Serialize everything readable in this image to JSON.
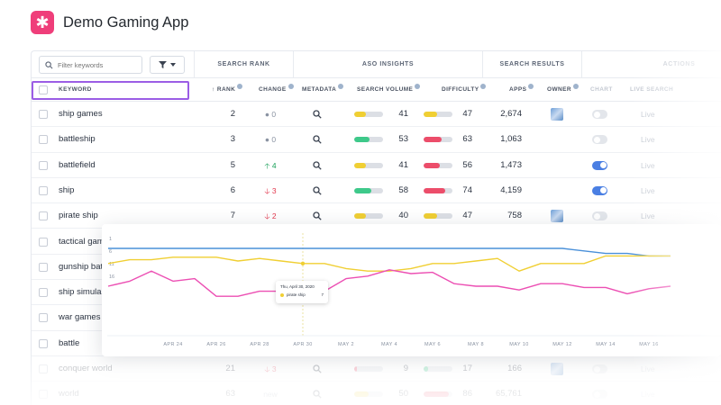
{
  "app": {
    "title": "Demo Gaming App",
    "logo_icon": "asterisk-icon",
    "brand_color": "#ef3e7a"
  },
  "toolbar": {
    "search_placeholder": "Filter keywords",
    "filter_icon": "filter-icon"
  },
  "groups": {
    "search_rank": "SEARCH RANK",
    "aso_insights": "ASO INSIGHTS",
    "search_results": "SEARCH RESULTS",
    "actions": "ACTIONS"
  },
  "columns": {
    "keyword": "KEYWORD",
    "rank": "RANK",
    "change": "CHANGE",
    "metadata": "METADATA",
    "search_volume": "SEARCH VOLUME",
    "difficulty": "DIFFICULTY",
    "apps": "APPS",
    "owner": "OWNER",
    "chart": "CHART",
    "live_search": "LIVE SEARCH"
  },
  "live_label": "Live",
  "rows": [
    {
      "keyword": "ship games",
      "rank": "2",
      "change": "0",
      "change_dir": "same",
      "volume": 41,
      "volume_color": "#f0cf33",
      "difficulty": 47,
      "difficulty_color": "#f0cf33",
      "apps": "2,674",
      "owner": true,
      "chart": false
    },
    {
      "keyword": "battleship",
      "rank": "3",
      "change": "0",
      "change_dir": "same",
      "volume": 53,
      "volume_color": "#3ec98a",
      "difficulty": 63,
      "difficulty_color": "#ec4d6a",
      "apps": "1,063",
      "owner": false,
      "chart": false
    },
    {
      "keyword": "battlefield",
      "rank": "5",
      "change": "4",
      "change_dir": "up",
      "volume": 41,
      "volume_color": "#f0cf33",
      "difficulty": 56,
      "difficulty_color": "#ec4d6a",
      "apps": "1,473",
      "owner": false,
      "chart": true
    },
    {
      "keyword": "ship",
      "rank": "6",
      "change": "3",
      "change_dir": "down",
      "volume": 58,
      "volume_color": "#3ec98a",
      "difficulty": 74,
      "difficulty_color": "#ec4d6a",
      "apps": "4,159",
      "owner": false,
      "chart": true
    },
    {
      "keyword": "pirate ship",
      "rank": "7",
      "change": "2",
      "change_dir": "down",
      "volume": 40,
      "volume_color": "#f0cf33",
      "difficulty": 47,
      "difficulty_color": "#f0cf33",
      "apps": "758",
      "owner": true,
      "chart": false
    },
    {
      "keyword": "tactical gam"
    },
    {
      "keyword": "gunship bat"
    },
    {
      "keyword": "ship simula"
    },
    {
      "keyword": "war games"
    },
    {
      "keyword": "battle"
    },
    {
      "keyword": "conquer world",
      "rank": "21",
      "change": "3",
      "change_dir": "down",
      "volume": 9,
      "volume_color": "#ec4d6a",
      "difficulty": 17,
      "difficulty_color": "#3ec98a",
      "apps": "166",
      "owner": true,
      "chart": false,
      "faded": true
    },
    {
      "keyword": "world",
      "rank": "63",
      "change": "new",
      "change_dir": "new",
      "volume": 50,
      "volume_color": "#f0cf33",
      "difficulty": 86,
      "difficulty_color": "#ec4d6a",
      "apps": "65,761",
      "owner": false,
      "chart": false,
      "faded": true
    }
  ],
  "chart_data": {
    "type": "line",
    "x_tick_labels": [
      "APR 24",
      "APR 26",
      "APR 28",
      "APR 30",
      "MAY 2",
      "MAY 4",
      "MAY 6",
      "MAY 8",
      "MAY 10",
      "MAY 12",
      "MAY 14",
      "MAY 16"
    ],
    "y_tick_labels": [
      "1",
      "6",
      "11",
      "16"
    ],
    "y_reversed": true,
    "x": [
      "Apr 21",
      "Apr 22",
      "Apr 23",
      "Apr 24",
      "Apr 25",
      "Apr 26",
      "Apr 27",
      "Apr 28",
      "Apr 29",
      "Apr 30",
      "May 1",
      "May 2",
      "May 3",
      "May 4",
      "May 5",
      "May 6",
      "May 7",
      "May 8",
      "May 9",
      "May 10",
      "May 11",
      "May 12",
      "May 13",
      "May 14",
      "May 15",
      "May 16",
      "May 17"
    ],
    "series": [
      {
        "color": "#4a90d9",
        "values": [
          1,
          1,
          1,
          1,
          1,
          1,
          1,
          1,
          1,
          1,
          1,
          1,
          1,
          1,
          1,
          1,
          1,
          1,
          1,
          1,
          1,
          1,
          2,
          3,
          3,
          4,
          4
        ]
      },
      {
        "color": "#f0cf33",
        "values": [
          7,
          5.5,
          5.5,
          4.5,
          4.5,
          4.5,
          6,
          5,
          6,
          7,
          7,
          9,
          10,
          10,
          9,
          7,
          7,
          6,
          5,
          10,
          7,
          7,
          7,
          4,
          4,
          4,
          4
        ]
      },
      {
        "color": "#ec4fb3",
        "values": [
          16,
          14,
          10,
          14,
          13,
          20,
          20,
          18,
          18,
          20,
          18,
          13,
          12,
          9.5,
          11,
          10.5,
          15,
          16,
          16,
          17.5,
          15,
          15,
          16.5,
          16.5,
          19,
          17,
          16
        ]
      }
    ],
    "tooltip": {
      "date": "Thu, April 30, 2020",
      "series_label": "pirate ship",
      "value": "7"
    }
  }
}
